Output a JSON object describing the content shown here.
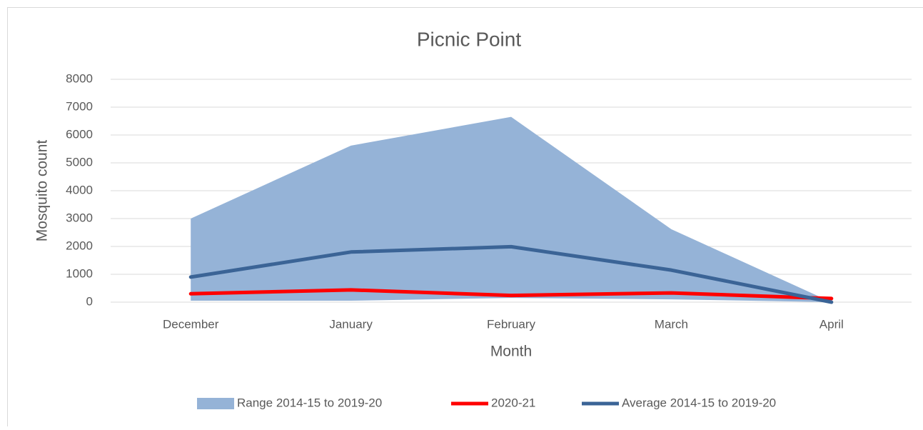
{
  "chart_data": {
    "type": "line",
    "title": "Picnic Point",
    "x_label": "Month",
    "y_label": "Mosquito count",
    "categories": [
      "December",
      "January",
      "February",
      "March",
      "April"
    ],
    "series": [
      {
        "name": "Range 2014-15 to 2019-20",
        "kind": "range",
        "color": "#95b3d7",
        "values": [
          3000,
          5620,
          6650,
          2620,
          0
        ],
        "low": [
          50,
          50,
          150,
          100,
          0
        ]
      },
      {
        "name": "2020-21",
        "color": "#ff0000",
        "values": [
          300,
          440,
          240,
          330,
          130
        ]
      },
      {
        "name": "Average 2014-15 to 2019-20",
        "color": "#3b6496",
        "values": [
          900,
          1800,
          1990,
          1150,
          0
        ]
      }
    ],
    "ylim": [
      0,
      8000
    ],
    "yticks": [
      0,
      1000,
      2000,
      3000,
      4000,
      5000,
      6000,
      7000,
      8000
    ],
    "grid": true,
    "legend": "bottom"
  }
}
